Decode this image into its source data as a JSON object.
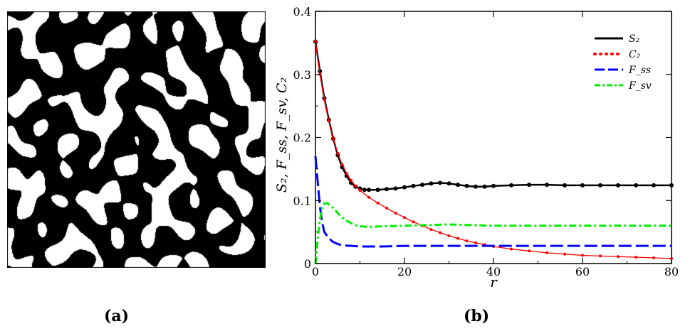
{
  "panel_a": {
    "caption": "(a)"
  },
  "panel_b": {
    "caption": "(b)"
  },
  "chart_data": {
    "type": "line",
    "title": "",
    "xlabel": "r",
    "ylabel": "S₂, F_ss, F_sv, C₂",
    "xlim": [
      0,
      80
    ],
    "ylim": [
      0,
      0.4
    ],
    "x_ticks": [
      "0",
      "20",
      "40",
      "60",
      "80"
    ],
    "y_ticks": [
      "0",
      "0.1",
      "0.2",
      "0.3",
      "0.4"
    ],
    "grid": false,
    "legend_position": "top-right",
    "series": [
      {
        "name": "S₂",
        "color": "#000000",
        "style": "solid-with-markers",
        "x": [
          0,
          1,
          2,
          3,
          4,
          5,
          6,
          7,
          8,
          9,
          10,
          11,
          12,
          14,
          16,
          18,
          20,
          22,
          24,
          26,
          28,
          30,
          32,
          34,
          36,
          38,
          40,
          44,
          48,
          52,
          56,
          60,
          64,
          68,
          72,
          76,
          80
        ],
        "values": [
          0.352,
          0.305,
          0.262,
          0.228,
          0.198,
          0.172,
          0.153,
          0.139,
          0.128,
          0.122,
          0.119,
          0.117,
          0.117,
          0.117,
          0.118,
          0.119,
          0.121,
          0.123,
          0.125,
          0.127,
          0.128,
          0.127,
          0.125,
          0.123,
          0.122,
          0.122,
          0.123,
          0.124,
          0.125,
          0.125,
          0.124,
          0.124,
          0.124,
          0.124,
          0.124,
          0.124,
          0.124
        ]
      },
      {
        "name": "C₂",
        "color": "#ff0000",
        "style": "dotted-with-markers",
        "x": [
          0,
          1,
          2,
          3,
          4,
          5,
          6,
          7,
          8,
          9,
          10,
          12,
          14,
          16,
          18,
          20,
          22,
          24,
          26,
          28,
          30,
          32,
          34,
          36,
          38,
          40,
          44,
          48,
          52,
          56,
          60,
          64,
          68,
          72,
          76,
          80
        ],
        "values": [
          0.352,
          0.3,
          0.26,
          0.226,
          0.198,
          0.175,
          0.157,
          0.143,
          0.132,
          0.123,
          0.116,
          0.105,
          0.096,
          0.088,
          0.08,
          0.073,
          0.066,
          0.06,
          0.054,
          0.049,
          0.044,
          0.04,
          0.036,
          0.033,
          0.03,
          0.027,
          0.023,
          0.02,
          0.017,
          0.015,
          0.013,
          0.012,
          0.011,
          0.01,
          0.009,
          0.008
        ]
      },
      {
        "name": "F_ss",
        "color": "#0000ff",
        "style": "long-dash",
        "x": [
          0,
          0.5,
          1,
          1.5,
          2,
          3,
          4,
          5,
          6,
          8,
          10,
          15,
          20,
          30,
          40,
          50,
          60,
          70,
          80
        ],
        "values": [
          0.17,
          0.13,
          0.09,
          0.065,
          0.05,
          0.04,
          0.034,
          0.031,
          0.029,
          0.028,
          0.027,
          0.027,
          0.028,
          0.028,
          0.028,
          0.028,
          0.028,
          0.028,
          0.028
        ]
      },
      {
        "name": "F_sv",
        "color": "#00ee00",
        "style": "dash-dot",
        "x": [
          0,
          0.5,
          1,
          1.5,
          2,
          2.5,
          3,
          4,
          5,
          6,
          7,
          8,
          9,
          10,
          12,
          15,
          20,
          25,
          30,
          35,
          40,
          50,
          60,
          70,
          80
        ],
        "values": [
          0.0,
          0.04,
          0.07,
          0.088,
          0.095,
          0.096,
          0.094,
          0.088,
          0.08,
          0.073,
          0.068,
          0.064,
          0.061,
          0.059,
          0.058,
          0.059,
          0.06,
          0.061,
          0.062,
          0.061,
          0.06,
          0.06,
          0.06,
          0.06,
          0.06
        ]
      }
    ]
  }
}
